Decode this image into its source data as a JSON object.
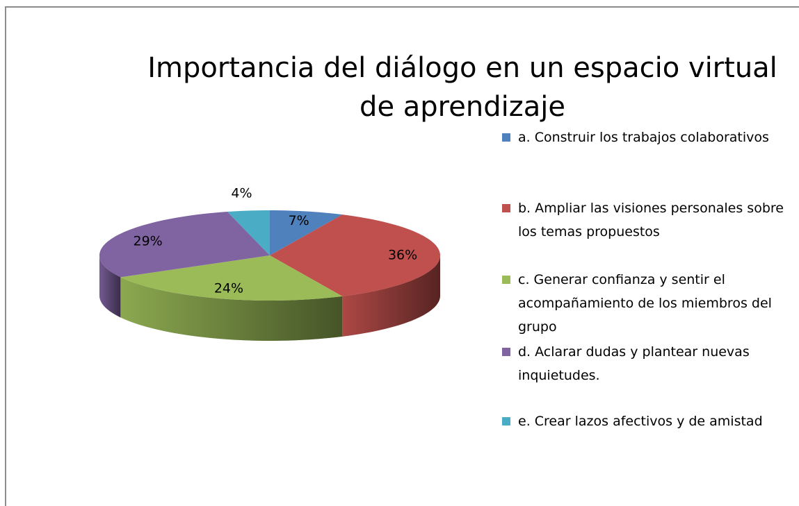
{
  "chart_data": {
    "type": "pie3d",
    "title": "Importancia del diálogo en un espacio virtual de aprendizaje",
    "series": [
      {
        "name": "Importancia del diálogo",
        "categories": [
          "a. Construir los trabajos colaborativos",
          "b. Ampliar las visiones personales sobre los temas propuestos",
          "c. Generar confianza y sentir el acompañamiento de los miembros del grupo",
          "d. Aclarar dudas y plantear nuevas inquietudes.",
          "e. Crear lazos afectivos y de amistad"
        ],
        "values": [
          7,
          36,
          24,
          29,
          4
        ],
        "value_labels": [
          "7%",
          "36%",
          "24%",
          "29%",
          "4%"
        ],
        "colors": [
          "#4f81bd",
          "#c0504d",
          "#9bbb59",
          "#8064a2",
          "#4bacc6"
        ]
      }
    ],
    "legend": "right"
  }
}
